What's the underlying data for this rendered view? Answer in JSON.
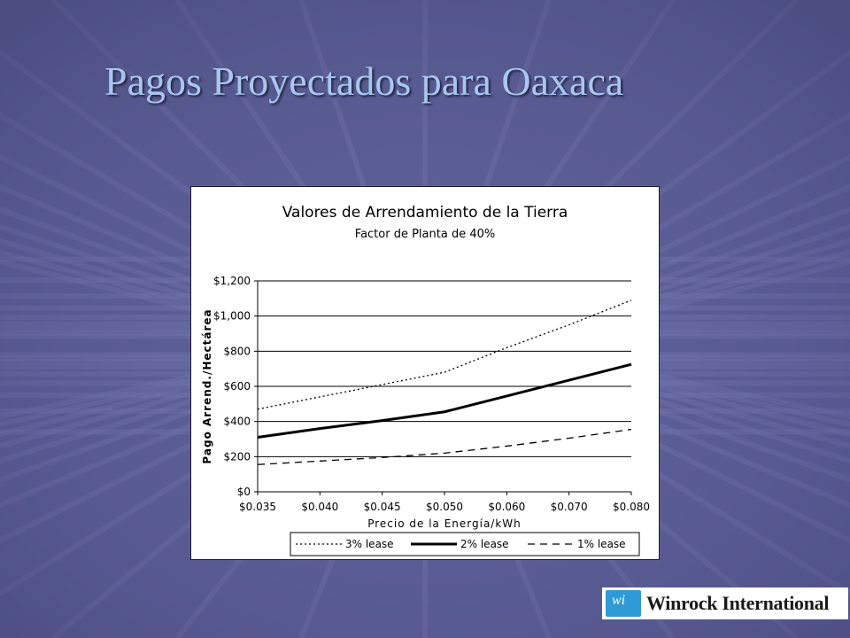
{
  "slide": {
    "title": "Pagos Proyectados para Oaxaca"
  },
  "logo": {
    "mark_text": "wi",
    "name": "Winrock International"
  },
  "colors": {
    "background": "#5c5f96",
    "title": "#a9c6f0",
    "logo_mark": "#2f9ad6"
  },
  "chart_data": {
    "type": "line",
    "title": "Valores de Arrendamiento de la Tierra",
    "subtitle": "Factor de Planta de 40%",
    "xlabel": "Precio de la Energía/kWh",
    "ylabel": "Pago Arrend./Hectárea",
    "categories": [
      "$0.035",
      "$0.040",
      "$0.045",
      "$0.050",
      "$0.060",
      "$0.070",
      "$0.080"
    ],
    "yticks": [
      "$0",
      "$200",
      "$400",
      "$600",
      "$800",
      "$1,000",
      "$1,200"
    ],
    "ylim": [
      0,
      1200
    ],
    "grid": "horizontal",
    "legend_position": "bottom",
    "series": [
      {
        "name": "3% lease",
        "style": "dotted",
        "values": [
          470,
          540,
          610,
          680,
          820,
          950,
          1090
        ]
      },
      {
        "name": "2% lease",
        "style": "solid-bold",
        "values": [
          310,
          360,
          405,
          455,
          545,
          635,
          725
        ]
      },
      {
        "name": "1% lease",
        "style": "dashed",
        "values": [
          155,
          175,
          195,
          220,
          260,
          305,
          355
        ]
      }
    ]
  }
}
